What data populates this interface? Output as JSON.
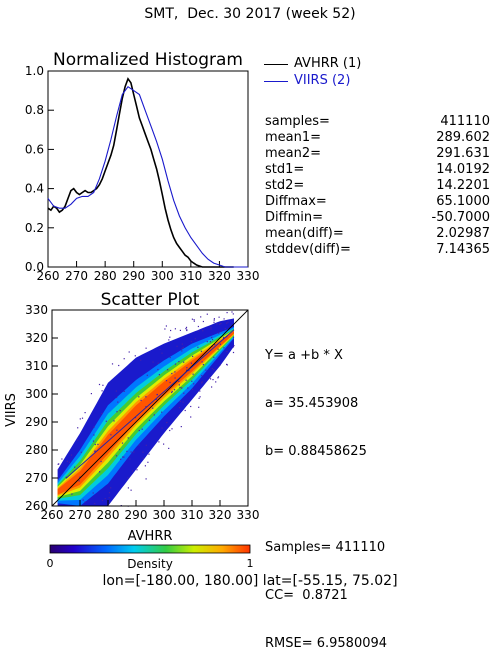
{
  "header": {
    "title": "SMT,  Dec. 30 2017 (week 52)"
  },
  "colors": {
    "avhrr": "#000000",
    "viirs": "#1a1acc",
    "diag": "#000000",
    "fit": "#2222aa"
  },
  "histogram": {
    "chart_data": {
      "type": "line",
      "title": "Normalized Histogram",
      "xlabel": "",
      "ylabel": "",
      "xlim": [
        260,
        330
      ],
      "ylim": [
        0.0,
        1.0
      ],
      "x_ticks": [
        "260",
        "270",
        "280",
        "290",
        "300",
        "310",
        "320",
        "330"
      ],
      "y_ticks": [
        "0.0",
        "0.2",
        "0.4",
        "0.6",
        "0.8",
        "1.0"
      ],
      "legend_position": "right",
      "series": [
        {
          "name": "AVHRR (1)",
          "color": "#000000",
          "x": [
            260,
            261,
            262,
            263,
            264,
            265,
            266,
            267,
            268,
            269,
            270,
            271,
            272,
            273,
            274,
            275,
            276,
            277,
            278,
            279,
            280,
            281,
            282,
            283,
            284,
            285,
            286,
            287,
            288,
            289,
            290,
            291,
            292,
            293,
            294,
            295,
            296,
            297,
            298,
            299,
            300,
            301,
            302,
            303,
            304,
            305,
            306,
            307,
            308,
            309,
            310,
            311,
            312,
            313,
            314,
            315,
            316,
            317,
            318,
            319,
            320,
            321,
            322,
            323,
            324,
            325
          ],
          "y": [
            0.3,
            0.29,
            0.31,
            0.3,
            0.28,
            0.29,
            0.31,
            0.35,
            0.39,
            0.4,
            0.38,
            0.37,
            0.38,
            0.39,
            0.38,
            0.38,
            0.39,
            0.4,
            0.42,
            0.45,
            0.49,
            0.53,
            0.57,
            0.62,
            0.7,
            0.78,
            0.86,
            0.92,
            0.96,
            0.94,
            0.88,
            0.82,
            0.76,
            0.72,
            0.68,
            0.64,
            0.6,
            0.55,
            0.5,
            0.44,
            0.37,
            0.3,
            0.24,
            0.19,
            0.15,
            0.12,
            0.1,
            0.08,
            0.06,
            0.05,
            0.03,
            0.02,
            0.01,
            0.005,
            0.0,
            0.0,
            0.0,
            0.0,
            0.0,
            0.0,
            0.0,
            0.0,
            0.0,
            0.0,
            0.0,
            0.0
          ]
        },
        {
          "name": "VIIRS (2)",
          "color": "#1a1acc",
          "x": [
            260,
            262,
            264,
            266,
            268,
            270,
            272,
            274,
            276,
            278,
            280,
            282,
            284,
            286,
            288,
            290,
            292,
            294,
            296,
            298,
            300,
            302,
            304,
            306,
            308,
            310,
            312,
            314,
            316,
            318,
            320,
            322,
            324,
            326,
            328,
            330
          ],
          "y": [
            0.35,
            0.31,
            0.3,
            0.3,
            0.32,
            0.35,
            0.36,
            0.36,
            0.38,
            0.45,
            0.54,
            0.65,
            0.77,
            0.88,
            0.92,
            0.9,
            0.88,
            0.8,
            0.72,
            0.64,
            0.55,
            0.44,
            0.34,
            0.26,
            0.2,
            0.15,
            0.11,
            0.07,
            0.04,
            0.02,
            0.01,
            0.0,
            0.0,
            0.0,
            0.0,
            0.0
          ]
        }
      ]
    }
  },
  "stats": [
    {
      "label": "samples=",
      "value": "411110"
    },
    {
      "label": "mean1=",
      "value": "289.602"
    },
    {
      "label": "mean2=",
      "value": "291.631"
    },
    {
      "label": "std1=",
      "value": "14.0192"
    },
    {
      "label": "std2=",
      "value": "14.2201"
    },
    {
      "label": "Diffmax=",
      "value": "65.1000"
    },
    {
      "label": "Diffmin=",
      "value": "-50.7000"
    },
    {
      "label": "mean(diff)=",
      "value": "2.02987"
    },
    {
      "label": "stddev(diff)=",
      "value": "7.14365"
    }
  ],
  "scatter": {
    "chart_data": {
      "type": "heatmap",
      "title": "Scatter Plot",
      "xlabel": "AVHRR",
      "ylabel": "VIIRS",
      "xlim": [
        260,
        330
      ],
      "ylim": [
        260,
        330
      ],
      "x_ticks": [
        "260",
        "270",
        "280",
        "290",
        "300",
        "310",
        "320",
        "330"
      ],
      "y_ticks": [
        "260",
        "270",
        "280",
        "290",
        "300",
        "310",
        "320",
        "330"
      ],
      "intercept": 35.453908,
      "slope": 0.88458625,
      "samples": 411110,
      "cc": 0.8721,
      "rmse": 6.9580094,
      "density_profile": {
        "x": [
          262,
          270,
          280,
          290,
          300,
          310,
          320,
          325
        ],
        "center": [
          265,
          270,
          282,
          293,
          302,
          310,
          318,
          322
        ],
        "core_halfwidth": [
          4,
          10,
          14,
          12,
          10,
          8,
          4,
          2
        ],
        "spread_halfwidth": [
          8,
          16,
          22,
          20,
          16,
          12,
          8,
          5
        ]
      }
    }
  },
  "regression": {
    "line1": "Y= a +b * X",
    "line2": "a= 35.453908",
    "line3": "b= 0.88458625",
    "line4": "Samples= 411110",
    "line5": "CC=  0.8721",
    "line6": "RMSE= 6.9580094"
  },
  "colorbar": {
    "label": "Density",
    "min_label": "0",
    "max_label": "1"
  },
  "footer": {
    "range": "lon=[-180.00, 180.00] lat=[-55.15, 75.02]"
  }
}
